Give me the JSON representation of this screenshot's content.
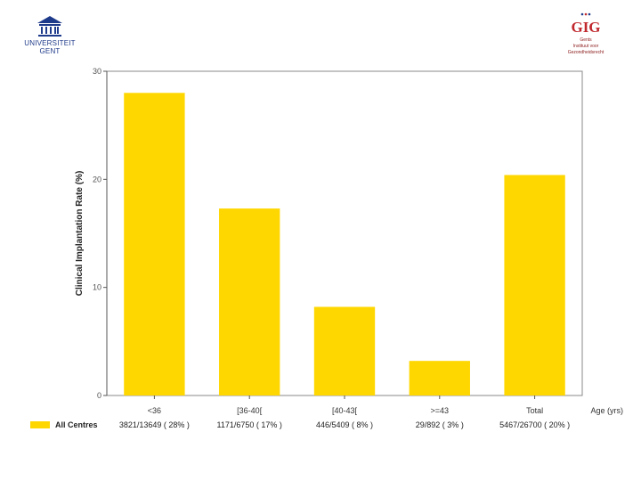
{
  "logos": {
    "ugent": {
      "line1": "UNIVERSITEIT",
      "line2": "GENT"
    },
    "gig": {
      "mark": "GIG",
      "line1": "Gents",
      "line2": "Instituut voor",
      "line3": "Gezondheidsrecht"
    }
  },
  "colors": {
    "bar": "#FFD700",
    "axis": "#555555",
    "frame": "#888888",
    "logo_blue": "#1e3a8a",
    "logo_red": "#c0282d"
  },
  "chart_data": {
    "type": "bar",
    "ylabel": "Clinical Implantation Rate (%)",
    "xlabel": "Age (yrs)",
    "ylim": [
      0,
      30
    ],
    "yticks": [
      0,
      10,
      20,
      30
    ],
    "grid": false,
    "legend": "bottom-left",
    "categories": [
      "<36",
      "[36-40[",
      "[40-43[",
      ">=43",
      "Total"
    ],
    "series": [
      {
        "name": "All Centres",
        "values": [
          28,
          17.3,
          8.2,
          3.2,
          20.4
        ]
      }
    ],
    "table_row": [
      "3821/13649 (  28% )",
      "1171/6750  (  17% )",
      "446/5409 (   8% )",
      "29/892  (   3% )",
      "5467/26700 (  20% )"
    ]
  }
}
